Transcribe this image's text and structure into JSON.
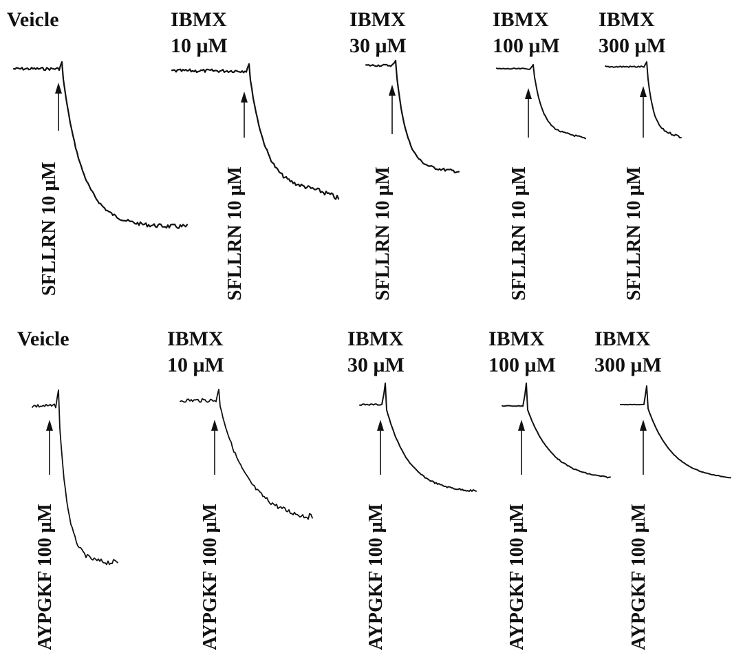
{
  "rows": [
    {
      "agonist_label": "SFLLRN 10 μM",
      "panels": [
        {
          "header": [
            "Veicle"
          ]
        },
        {
          "header": [
            "IBMX",
            "10 μM"
          ]
        },
        {
          "header": [
            "IBMX",
            "30 μM"
          ]
        },
        {
          "header": [
            "IBMX",
            "100 μM"
          ]
        },
        {
          "header": [
            "IBMX",
            "300 μM"
          ]
        }
      ]
    },
    {
      "agonist_label": "AYPGKF 100 μM",
      "panels": [
        {
          "header": [
            "Veicle"
          ]
        },
        {
          "header": [
            "IBMX",
            "10 μM"
          ]
        },
        {
          "header": [
            "IBMX",
            "30 μM"
          ]
        },
        {
          "header": [
            "IBMX",
            "100 μM"
          ]
        },
        {
          "header": [
            "IBMX",
            "300 μM"
          ]
        }
      ]
    }
  ],
  "colors": {
    "ink": "#111111",
    "background": "#ffffff"
  }
}
